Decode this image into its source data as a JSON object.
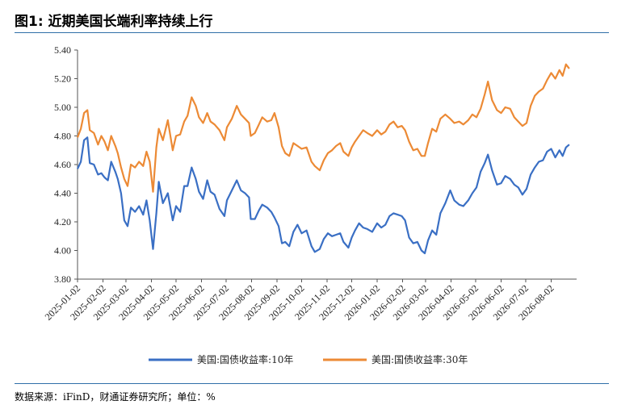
{
  "title": "图1: 近期美国长端利率持续上行",
  "source": "数据来源：iFinD，财通证券研究所；单位：%",
  "chart_data": {
    "type": "line",
    "title": "",
    "xlabel": "",
    "ylabel": "",
    "ylim": [
      3.8,
      5.4
    ],
    "yticks": [
      "3.80",
      "4.00",
      "4.20",
      "4.40",
      "4.60",
      "4.80",
      "5.00",
      "5.20",
      "5.40"
    ],
    "xticks": [
      "2025-01-02",
      "2025-02-02",
      "2025-03-02",
      "2025-04-02",
      "2025-05-02",
      "2025-06-02",
      "2025-07-02",
      "2025-08-02",
      "2025-09-02",
      "2025-10-02",
      "2025-11-02",
      "2025-12-02",
      "2026-01-02",
      "2026-02-02",
      "2026-03-02",
      "2026-04-02",
      "2026-05-02",
      "2026-06-02",
      "2026-07-02",
      "2026-08-02"
    ],
    "grid": false,
    "legend": "bottom",
    "series": [
      {
        "name": "美国:国债收益率:10年",
        "color": "#3a6fc4",
        "points": [
          [
            "2025-01-02",
            4.57
          ],
          [
            "2025-01-06",
            4.62
          ],
          [
            "2025-01-10",
            4.77
          ],
          [
            "2025-01-14",
            4.79
          ],
          [
            "2025-01-17",
            4.61
          ],
          [
            "2025-01-22",
            4.6
          ],
          [
            "2025-01-27",
            4.53
          ],
          [
            "2025-01-31",
            4.54
          ],
          [
            "2025-02-04",
            4.51
          ],
          [
            "2025-02-08",
            4.49
          ],
          [
            "2025-02-12",
            4.62
          ],
          [
            "2025-02-17",
            4.55
          ],
          [
            "2025-02-20",
            4.5
          ],
          [
            "2025-02-24",
            4.4
          ],
          [
            "2025-02-28",
            4.21
          ],
          [
            "2025-03-04",
            4.17
          ],
          [
            "2025-03-08",
            4.3
          ],
          [
            "2025-03-13",
            4.27
          ],
          [
            "2025-03-18",
            4.31
          ],
          [
            "2025-03-23",
            4.25
          ],
          [
            "2025-03-27",
            4.35
          ],
          [
            "2025-03-31",
            4.21
          ],
          [
            "2025-04-04",
            4.01
          ],
          [
            "2025-04-08",
            4.26
          ],
          [
            "2025-04-11",
            4.48
          ],
          [
            "2025-04-16",
            4.33
          ],
          [
            "2025-04-22",
            4.4
          ],
          [
            "2025-04-28",
            4.21
          ],
          [
            "2025-05-02",
            4.31
          ],
          [
            "2025-05-07",
            4.27
          ],
          [
            "2025-05-12",
            4.45
          ],
          [
            "2025-05-16",
            4.45
          ],
          [
            "2025-05-21",
            4.58
          ],
          [
            "2025-05-26",
            4.5
          ],
          [
            "2025-05-30",
            4.41
          ],
          [
            "2025-06-04",
            4.36
          ],
          [
            "2025-06-09",
            4.49
          ],
          [
            "2025-06-13",
            4.41
          ],
          [
            "2025-06-18",
            4.39
          ],
          [
            "2025-06-24",
            4.29
          ],
          [
            "2025-06-30",
            4.24
          ],
          [
            "2025-07-03",
            4.35
          ],
          [
            "2025-07-09",
            4.42
          ],
          [
            "2025-07-15",
            4.49
          ],
          [
            "2025-07-20",
            4.42
          ],
          [
            "2025-07-25",
            4.4
          ],
          [
            "2025-07-30",
            4.37
          ],
          [
            "2025-08-01",
            4.22
          ],
          [
            "2025-08-06",
            4.22
          ],
          [
            "2025-08-11",
            4.28
          ],
          [
            "2025-08-15",
            4.32
          ],
          [
            "2025-08-21",
            4.3
          ],
          [
            "2025-08-26",
            4.27
          ],
          [
            "2025-08-30",
            4.23
          ],
          [
            "2025-09-04",
            4.17
          ],
          [
            "2025-09-08",
            4.05
          ],
          [
            "2025-09-12",
            4.06
          ],
          [
            "2025-09-17",
            4.03
          ],
          [
            "2025-09-22",
            4.13
          ],
          [
            "2025-09-27",
            4.18
          ],
          [
            "2025-10-02",
            4.12
          ],
          [
            "2025-10-08",
            4.14
          ],
          [
            "2025-10-14",
            4.03
          ],
          [
            "2025-10-18",
            3.99
          ],
          [
            "2025-10-24",
            4.01
          ],
          [
            "2025-10-29",
            4.08
          ],
          [
            "2025-11-03",
            4.12
          ],
          [
            "2025-11-08",
            4.1
          ],
          [
            "2025-11-13",
            4.11
          ],
          [
            "2025-11-18",
            4.12
          ],
          [
            "2025-11-22",
            4.06
          ],
          [
            "2025-11-28",
            4.02
          ],
          [
            "2025-12-02",
            4.09
          ],
          [
            "2025-12-06",
            4.14
          ],
          [
            "2025-12-11",
            4.19
          ],
          [
            "2025-12-16",
            4.16
          ],
          [
            "2025-12-21",
            4.15
          ],
          [
            "2025-12-27",
            4.13
          ],
          [
            "2026-01-02",
            4.19
          ],
          [
            "2026-01-07",
            4.16
          ],
          [
            "2026-01-12",
            4.18
          ],
          [
            "2026-01-17",
            4.24
          ],
          [
            "2026-01-22",
            4.26
          ],
          [
            "2026-01-27",
            4.25
          ],
          [
            "2026-02-01",
            4.24
          ],
          [
            "2026-02-05",
            4.21
          ],
          [
            "2026-02-10",
            4.09
          ],
          [
            "2026-02-15",
            4.05
          ],
          [
            "2026-02-20",
            4.06
          ],
          [
            "2026-02-25",
            4.0
          ],
          [
            "2026-03-01",
            3.98
          ],
          [
            "2026-03-05",
            4.07
          ],
          [
            "2026-03-10",
            4.14
          ],
          [
            "2026-03-15",
            4.11
          ],
          [
            "2026-03-20",
            4.26
          ],
          [
            "2026-03-26",
            4.33
          ],
          [
            "2026-04-01",
            4.42
          ],
          [
            "2026-04-06",
            4.35
          ],
          [
            "2026-04-12",
            4.32
          ],
          [
            "2026-04-17",
            4.31
          ],
          [
            "2026-04-23",
            4.35
          ],
          [
            "2026-04-28",
            4.4
          ],
          [
            "2026-05-03",
            4.44
          ],
          [
            "2026-05-08",
            4.55
          ],
          [
            "2026-05-13",
            4.61
          ],
          [
            "2026-05-17",
            4.67
          ],
          [
            "2026-05-22",
            4.56
          ],
          [
            "2026-05-28",
            4.46
          ],
          [
            "2026-06-02",
            4.47
          ],
          [
            "2026-06-07",
            4.52
          ],
          [
            "2026-06-13",
            4.5
          ],
          [
            "2026-06-18",
            4.46
          ],
          [
            "2026-06-23",
            4.44
          ],
          [
            "2026-06-28",
            4.39
          ],
          [
            "2026-07-03",
            4.43
          ],
          [
            "2026-07-08",
            4.53
          ],
          [
            "2026-07-13",
            4.58
          ],
          [
            "2026-07-18",
            4.62
          ],
          [
            "2026-07-23",
            4.63
          ],
          [
            "2026-07-28",
            4.69
          ],
          [
            "2026-08-02",
            4.71
          ],
          [
            "2026-08-07",
            4.65
          ],
          [
            "2026-08-12",
            4.7
          ],
          [
            "2026-08-16",
            4.66
          ],
          [
            "2026-08-20",
            4.72
          ],
          [
            "2026-08-24",
            4.74
          ]
        ]
      },
      {
        "name": "美国:国债收益率:30年",
        "color": "#ec8a35",
        "points": [
          [
            "2025-01-02",
            4.79
          ],
          [
            "2025-01-06",
            4.85
          ],
          [
            "2025-01-10",
            4.96
          ],
          [
            "2025-01-14",
            4.98
          ],
          [
            "2025-01-17",
            4.84
          ],
          [
            "2025-01-22",
            4.82
          ],
          [
            "2025-01-27",
            4.74
          ],
          [
            "2025-01-31",
            4.8
          ],
          [
            "2025-02-04",
            4.76
          ],
          [
            "2025-02-08",
            4.7
          ],
          [
            "2025-02-12",
            4.8
          ],
          [
            "2025-02-17",
            4.73
          ],
          [
            "2025-02-20",
            4.68
          ],
          [
            "2025-02-24",
            4.58
          ],
          [
            "2025-02-28",
            4.5
          ],
          [
            "2025-03-04",
            4.45
          ],
          [
            "2025-03-08",
            4.6
          ],
          [
            "2025-03-13",
            4.58
          ],
          [
            "2025-03-18",
            4.62
          ],
          [
            "2025-03-23",
            4.59
          ],
          [
            "2025-03-27",
            4.69
          ],
          [
            "2025-03-31",
            4.62
          ],
          [
            "2025-04-04",
            4.41
          ],
          [
            "2025-04-08",
            4.72
          ],
          [
            "2025-04-11",
            4.85
          ],
          [
            "2025-04-16",
            4.77
          ],
          [
            "2025-04-22",
            4.91
          ],
          [
            "2025-04-28",
            4.7
          ],
          [
            "2025-05-02",
            4.8
          ],
          [
            "2025-05-07",
            4.81
          ],
          [
            "2025-05-12",
            4.9
          ],
          [
            "2025-05-16",
            4.94
          ],
          [
            "2025-05-21",
            5.07
          ],
          [
            "2025-05-26",
            5.01
          ],
          [
            "2025-05-30",
            4.93
          ],
          [
            "2025-06-04",
            4.89
          ],
          [
            "2025-06-09",
            4.96
          ],
          [
            "2025-06-13",
            4.9
          ],
          [
            "2025-06-18",
            4.88
          ],
          [
            "2025-06-24",
            4.84
          ],
          [
            "2025-06-30",
            4.77
          ],
          [
            "2025-07-03",
            4.86
          ],
          [
            "2025-07-09",
            4.92
          ],
          [
            "2025-07-15",
            5.01
          ],
          [
            "2025-07-20",
            4.95
          ],
          [
            "2025-07-25",
            4.92
          ],
          [
            "2025-07-30",
            4.89
          ],
          [
            "2025-08-01",
            4.8
          ],
          [
            "2025-08-06",
            4.82
          ],
          [
            "2025-08-11",
            4.88
          ],
          [
            "2025-08-15",
            4.93
          ],
          [
            "2025-08-21",
            4.9
          ],
          [
            "2025-08-26",
            4.91
          ],
          [
            "2025-08-30",
            4.96
          ],
          [
            "2025-09-04",
            4.86
          ],
          [
            "2025-09-08",
            4.73
          ],
          [
            "2025-09-12",
            4.68
          ],
          [
            "2025-09-17",
            4.66
          ],
          [
            "2025-09-22",
            4.75
          ],
          [
            "2025-09-27",
            4.73
          ],
          [
            "2025-10-02",
            4.71
          ],
          [
            "2025-10-08",
            4.72
          ],
          [
            "2025-10-14",
            4.62
          ],
          [
            "2025-10-18",
            4.59
          ],
          [
            "2025-10-24",
            4.56
          ],
          [
            "2025-10-29",
            4.63
          ],
          [
            "2025-11-03",
            4.68
          ],
          [
            "2025-11-08",
            4.7
          ],
          [
            "2025-11-13",
            4.73
          ],
          [
            "2025-11-18",
            4.75
          ],
          [
            "2025-11-22",
            4.69
          ],
          [
            "2025-11-28",
            4.66
          ],
          [
            "2025-12-02",
            4.72
          ],
          [
            "2025-12-06",
            4.76
          ],
          [
            "2025-12-11",
            4.8
          ],
          [
            "2025-12-16",
            4.84
          ],
          [
            "2025-12-21",
            4.82
          ],
          [
            "2025-12-27",
            4.8
          ],
          [
            "2026-01-02",
            4.84
          ],
          [
            "2026-01-07",
            4.81
          ],
          [
            "2026-01-12",
            4.83
          ],
          [
            "2026-01-17",
            4.88
          ],
          [
            "2026-01-22",
            4.9
          ],
          [
            "2026-01-27",
            4.86
          ],
          [
            "2026-02-01",
            4.87
          ],
          [
            "2026-02-05",
            4.84
          ],
          [
            "2026-02-10",
            4.76
          ],
          [
            "2026-02-15",
            4.7
          ],
          [
            "2026-02-20",
            4.71
          ],
          [
            "2026-02-25",
            4.66
          ],
          [
            "2026-03-01",
            4.66
          ],
          [
            "2026-03-05",
            4.75
          ],
          [
            "2026-03-10",
            4.85
          ],
          [
            "2026-03-15",
            4.83
          ],
          [
            "2026-03-20",
            4.92
          ],
          [
            "2026-03-26",
            4.95
          ],
          [
            "2026-04-01",
            4.92
          ],
          [
            "2026-04-06",
            4.89
          ],
          [
            "2026-04-12",
            4.9
          ],
          [
            "2026-04-17",
            4.88
          ],
          [
            "2026-04-23",
            4.91
          ],
          [
            "2026-04-28",
            4.95
          ],
          [
            "2026-05-03",
            4.93
          ],
          [
            "2026-05-08",
            4.99
          ],
          [
            "2026-05-13",
            5.09
          ],
          [
            "2026-05-17",
            5.18
          ],
          [
            "2026-05-22",
            5.05
          ],
          [
            "2026-05-28",
            4.98
          ],
          [
            "2026-06-02",
            4.96
          ],
          [
            "2026-06-07",
            5.0
          ],
          [
            "2026-06-13",
            4.99
          ],
          [
            "2026-06-18",
            4.93
          ],
          [
            "2026-06-23",
            4.9
          ],
          [
            "2026-06-28",
            4.87
          ],
          [
            "2026-07-03",
            4.89
          ],
          [
            "2026-07-08",
            5.01
          ],
          [
            "2026-07-13",
            5.08
          ],
          [
            "2026-07-18",
            5.11
          ],
          [
            "2026-07-23",
            5.13
          ],
          [
            "2026-07-28",
            5.19
          ],
          [
            "2026-08-02",
            5.24
          ],
          [
            "2026-08-07",
            5.2
          ],
          [
            "2026-08-12",
            5.26
          ],
          [
            "2026-08-16",
            5.22
          ],
          [
            "2026-08-20",
            5.3
          ],
          [
            "2026-08-24",
            5.27
          ]
        ]
      }
    ]
  }
}
